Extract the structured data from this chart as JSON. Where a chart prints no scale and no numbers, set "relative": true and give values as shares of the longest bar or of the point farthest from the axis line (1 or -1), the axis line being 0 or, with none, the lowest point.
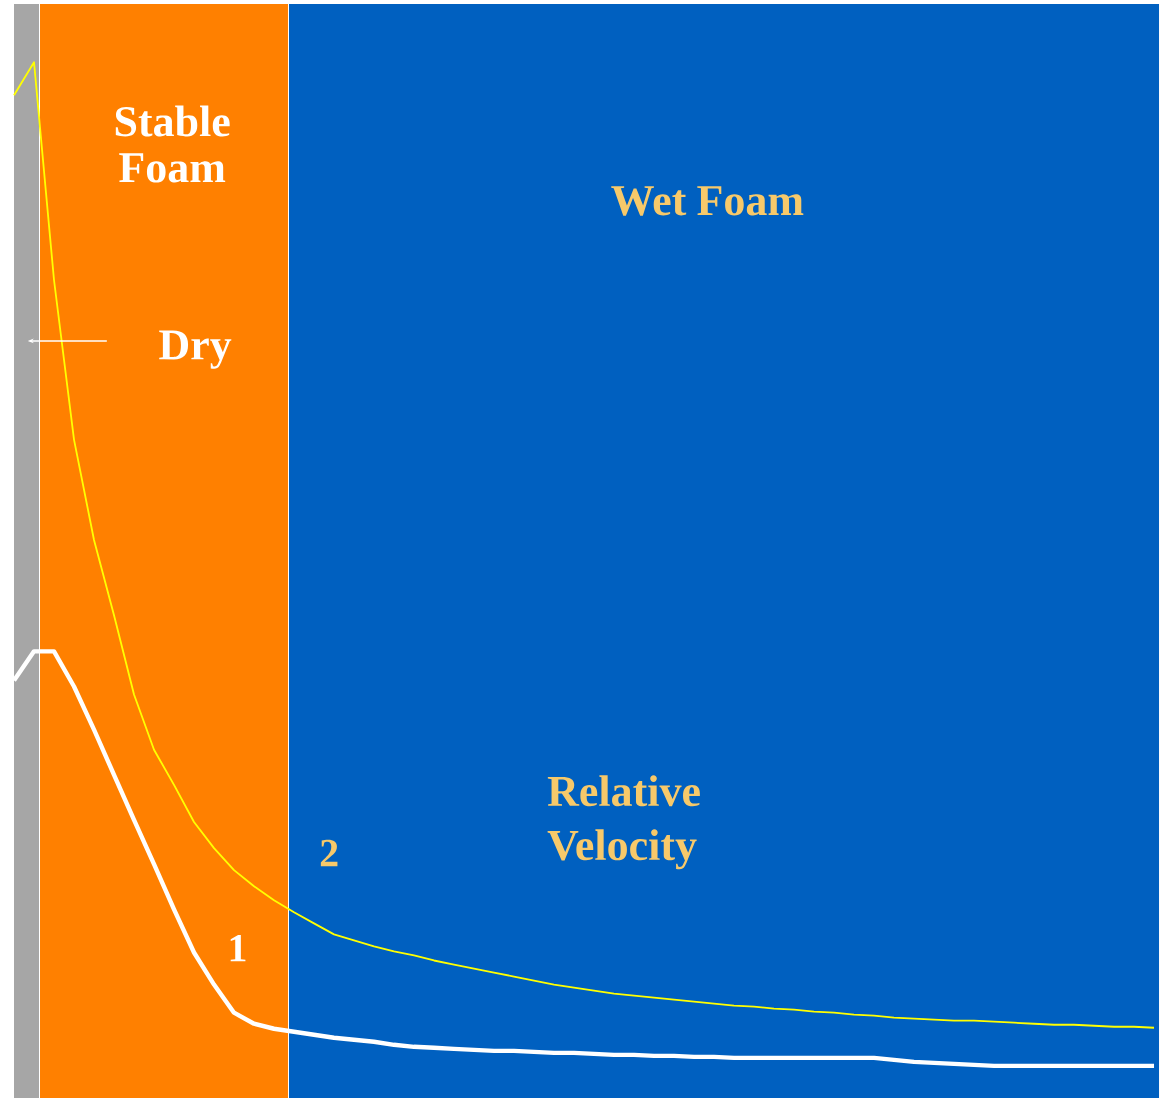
{
  "chart_data": {
    "type": "line",
    "relative": true,
    "categories": [
      null,
      null,
      null,
      null,
      null,
      null,
      null,
      null,
      null,
      null,
      null,
      null,
      null,
      null,
      null,
      null,
      null,
      null,
      null,
      null,
      null,
      null,
      null,
      null,
      null,
      null,
      null,
      null,
      null,
      null,
      null,
      null,
      null,
      null,
      null,
      null,
      null,
      null,
      null,
      null,
      null,
      null,
      null,
      null,
      null,
      null,
      null,
      null,
      null,
      null,
      null,
      null,
      null,
      null,
      null,
      null,
      null,
      null
    ],
    "series": [
      {
        "name": "1",
        "color": "#ffffff",
        "values": [
          0.384,
          0.413,
          0.413,
          0.378,
          0.335,
          0.29,
          0.245,
          0.201,
          0.156,
          0.113,
          0.081,
          0.053,
          0.042,
          0.037,
          0.034,
          0.031,
          0.028,
          0.026,
          0.024,
          0.021,
          0.019,
          0.018,
          0.017,
          0.016,
          0.015,
          0.015,
          0.014,
          0.013,
          0.013,
          0.012,
          0.011,
          0.011,
          0.01,
          0.01,
          0.009,
          0.009,
          0.008,
          0.008,
          0.008,
          0.008,
          0.008,
          0.008,
          0.008,
          0.008,
          0.006,
          0.004,
          0.003,
          0.002,
          0.001,
          0,
          0,
          0,
          0,
          0,
          0,
          0,
          0,
          0
        ]
      },
      {
        "name": "2",
        "color": "#ffff00",
        "values": [
          0.967,
          1.0,
          0.783,
          0.624,
          0.524,
          0.449,
          0.37,
          0.315,
          0.28,
          0.243,
          0.217,
          0.195,
          0.179,
          0.165,
          0.153,
          0.142,
          0.131,
          0.125,
          0.119,
          0.114,
          0.11,
          0.105,
          0.101,
          0.097,
          0.093,
          0.089,
          0.085,
          0.081,
          0.078,
          0.075,
          0.072,
          0.07,
          0.068,
          0.066,
          0.064,
          0.062,
          0.06,
          0.059,
          0.057,
          0.056,
          0.054,
          0.053,
          0.051,
          0.05,
          0.048,
          0.047,
          0.046,
          0.045,
          0.045,
          0.044,
          0.043,
          0.042,
          0.041,
          0.041,
          0.04,
          0.039,
          0.039,
          0.038
        ]
      }
    ],
    "annotations": [
      "Stable Foam",
      "Wet Foam",
      "Dry",
      "Relative Velocity"
    ]
  }
}
